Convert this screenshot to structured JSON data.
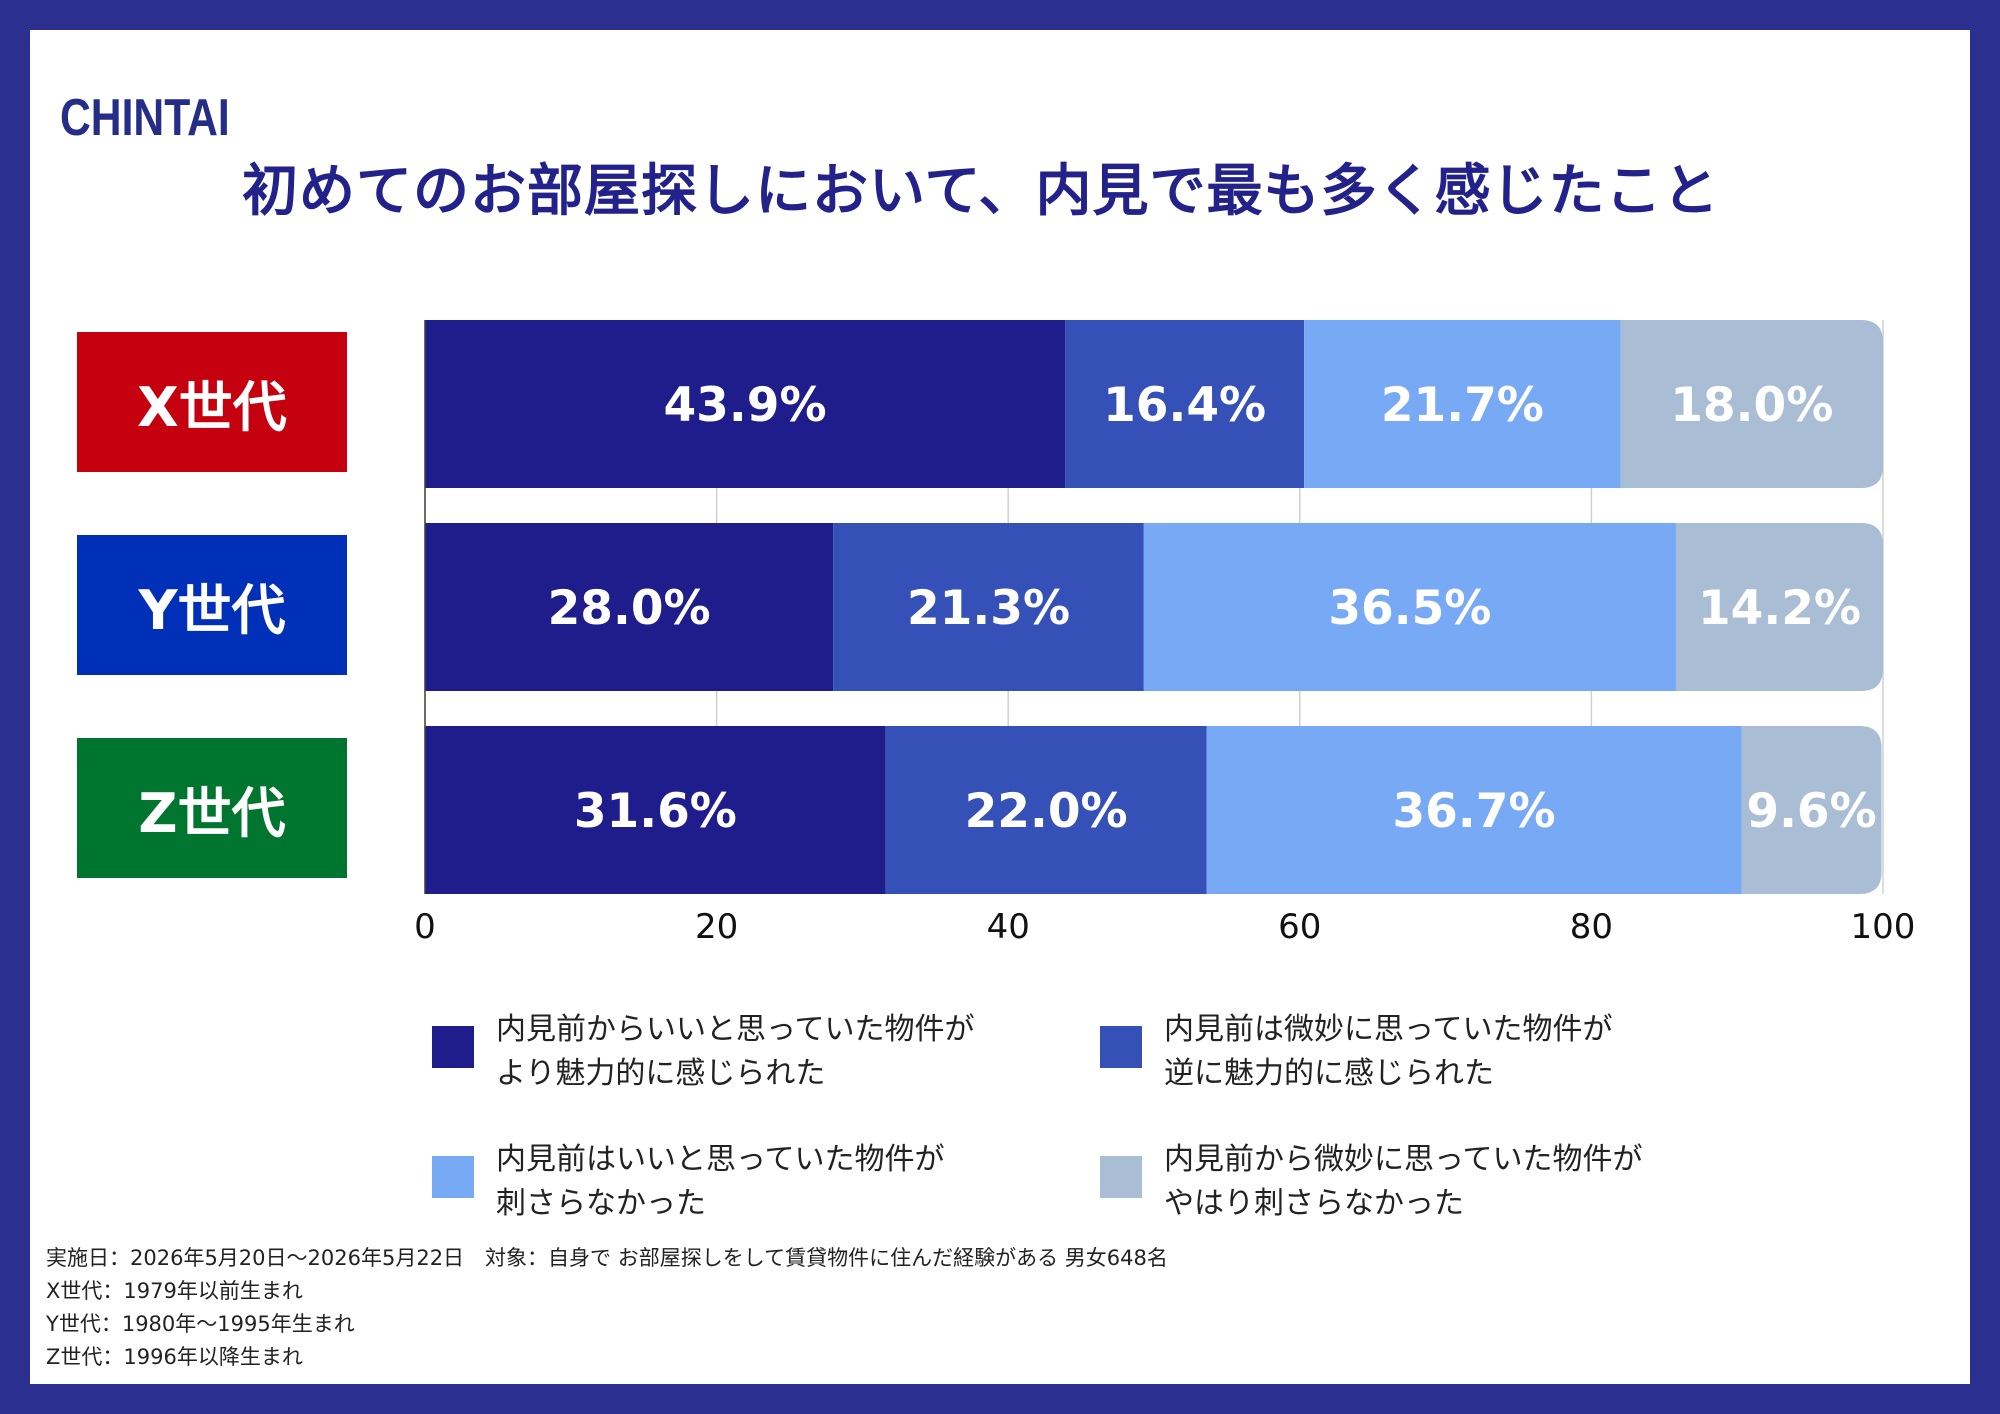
{
  "logo": "CHINTAI",
  "title": "初めてのお部屋探しにおいて、内見で最も多く感じたこと",
  "colors": {
    "frame": "#2b2f8f",
    "generations": [
      "#c5000f",
      "#0030b7",
      "#007530"
    ],
    "segments": [
      "#1f1d8c",
      "#3550b6",
      "#78a9f4",
      "#a9bdd5"
    ]
  },
  "chart_data": {
    "type": "bar",
    "orientation": "horizontal",
    "stacked": true,
    "categories": [
      "X世代",
      "Y世代",
      "Z世代"
    ],
    "series": [
      {
        "name": "内見前からいいと思っていた物件がより魅力的に感じられた",
        "values": [
          43.9,
          28.0,
          31.6
        ],
        "labels": [
          "43.9%",
          "28.0%",
          "31.6%"
        ]
      },
      {
        "name": "内見前は微妙に思っていた物件が逆に魅力的に感じられた",
        "values": [
          16.4,
          21.3,
          22.0
        ],
        "labels": [
          "16.4%",
          "21.3%",
          "22.0%"
        ]
      },
      {
        "name": "内見前はいいと思っていた物件が刺さらなかった",
        "values": [
          21.7,
          36.5,
          36.7
        ],
        "labels": [
          "21.7%",
          "36.5%",
          "36.7%"
        ]
      },
      {
        "name": "内見前から微妙に思っていた物件がやはり刺さらなかった",
        "values": [
          18.0,
          14.2,
          9.6
        ],
        "labels": [
          "18.0%",
          "14.2%",
          "9.6%"
        ]
      }
    ],
    "xlim": [
      0,
      100
    ],
    "xticks": [
      "0",
      "20",
      "40",
      "60",
      "80",
      "100"
    ],
    "grid": true,
    "legend_position": "bottom"
  },
  "legend": [
    " 内見前からいいと思っていた物件が\nより魅力的に感じられた",
    "内見前は微妙に思っていた物件が\n逆に魅力的に感じられた",
    "内見前はいいと思っていた物件が\n刺さらなかった",
    "内見前から微妙に思っていた物件が\nやはり刺さらなかった"
  ],
  "notes": [
    "実施日：2026年5月20日〜2026年5月22日　対象：自身で お部屋探しをして賃貸物件に住んだ経験がある 男女648名",
    "X世代：1979年以前生まれ",
    "Y世代：1980年〜1995年生まれ",
    "Z世代：1996年以降生まれ"
  ]
}
